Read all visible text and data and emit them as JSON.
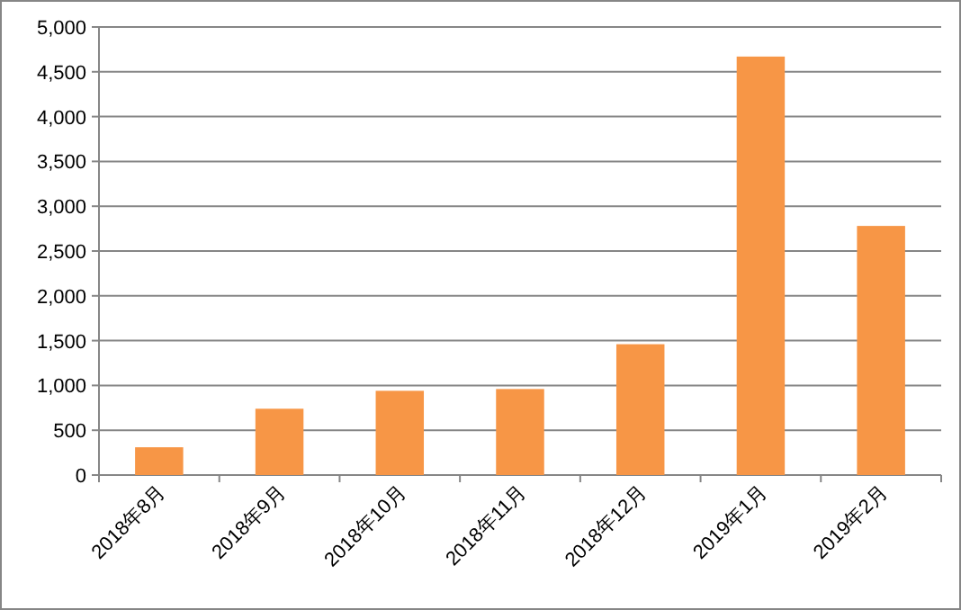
{
  "chart_data": {
    "type": "bar",
    "categories": [
      "2018年8月",
      "2018年9月",
      "2018年10月",
      "2018年11月",
      "2018年12月",
      "2019年1月",
      "2019年2月"
    ],
    "values": [
      310,
      740,
      940,
      960,
      1460,
      4670,
      2780
    ],
    "color": "#f79646",
    "ylim": [
      0,
      5000
    ],
    "yticks": [
      0,
      {
        "value": 500,
        "label": "500"
      },
      {
        "value": 1000,
        "label": "1,000"
      },
      {
        "value": 1500,
        "label": "1,500"
      },
      {
        "value": 2000,
        "label": "2,000"
      },
      {
        "value": 2500,
        "label": "2,500"
      },
      {
        "value": 3000,
        "label": "3,000"
      },
      {
        "value": 3500,
        "label": "3,500"
      },
      {
        "value": 4000,
        "label": "4,000"
      },
      {
        "value": 4500,
        "label": "4,500"
      },
      {
        "value": 5000,
        "label": "5,000"
      }
    ],
    "grid": "y"
  }
}
